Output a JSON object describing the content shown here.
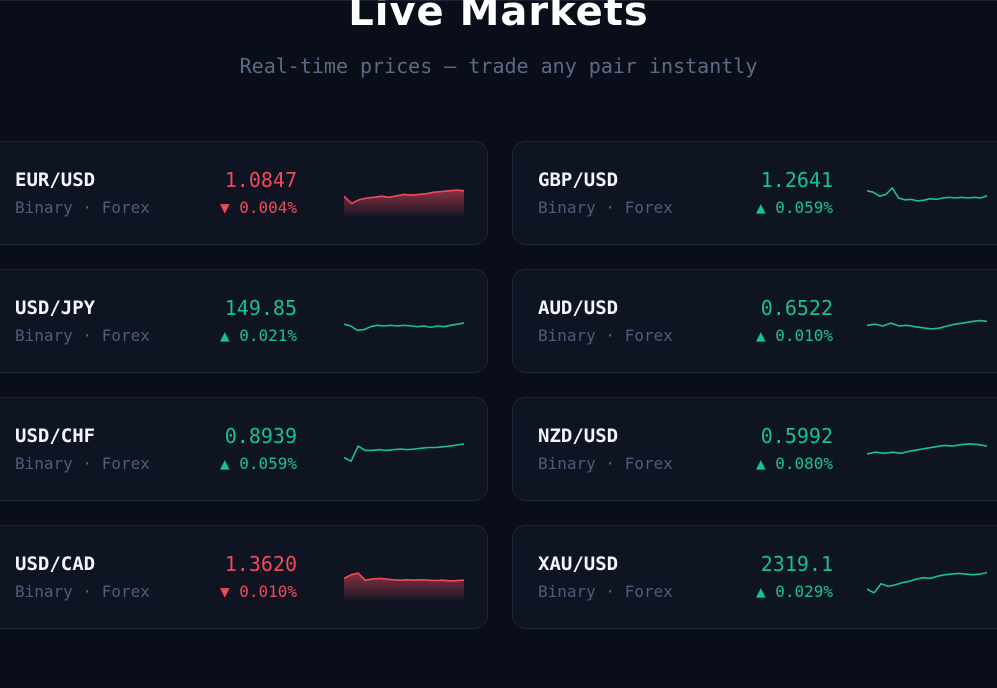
{
  "header": {
    "title": "Live Markets",
    "subtitle": "Real-time prices — trade any pair instantly"
  },
  "colors": {
    "up": "#19c28c",
    "down": "#f04a5a",
    "background": "#0a0e18",
    "card": "#0f1422"
  },
  "markets": [
    {
      "pair": "EUR/USD",
      "meta": "Binary · Forex",
      "price": "1.0847",
      "change": "▼ 0.004%",
      "direction": "down",
      "spark": [
        0.55,
        0.35,
        0.45,
        0.5,
        0.52,
        0.55,
        0.52,
        0.56,
        0.6,
        0.58,
        0.6,
        0.62,
        0.66,
        0.68,
        0.7,
        0.72,
        0.7
      ]
    },
    {
      "pair": "GBP/USD",
      "meta": "Binary · Forex",
      "price": "1.2641",
      "change": "▲ 0.059%",
      "direction": "up",
      "spark": [
        0.7,
        0.66,
        0.55,
        0.6,
        0.78,
        0.5,
        0.45,
        0.46,
        0.42,
        0.44,
        0.48,
        0.46,
        0.5,
        0.52,
        0.5,
        0.52,
        0.5,
        0.52,
        0.5,
        0.56
      ]
    },
    {
      "pair": "USD/JPY",
      "meta": "Binary · Forex",
      "price": "149.85",
      "change": "▲ 0.021%",
      "direction": "up",
      "spark": [
        0.55,
        0.5,
        0.38,
        0.4,
        0.48,
        0.52,
        0.5,
        0.52,
        0.5,
        0.52,
        0.5,
        0.48,
        0.5,
        0.46,
        0.5,
        0.48,
        0.52,
        0.55,
        0.58
      ]
    },
    {
      "pair": "AUD/USD",
      "meta": "Binary · Forex",
      "price": "0.6522",
      "change": "▲ 0.010%",
      "direction": "up",
      "spark": [
        0.52,
        0.55,
        0.5,
        0.58,
        0.5,
        0.52,
        0.48,
        0.45,
        0.42,
        0.44,
        0.5,
        0.55,
        0.58,
        0.62,
        0.65,
        0.63
      ]
    },
    {
      "pair": "USD/CHF",
      "meta": "Binary · Forex",
      "price": "0.8939",
      "change": "▲ 0.059%",
      "direction": "up",
      "spark": [
        0.4,
        0.3,
        0.72,
        0.6,
        0.6,
        0.62,
        0.6,
        0.62,
        0.64,
        0.62,
        0.64,
        0.66,
        0.68,
        0.68,
        0.7,
        0.72,
        0.75,
        0.78
      ]
    },
    {
      "pair": "NZD/USD",
      "meta": "Binary · Forex",
      "price": "0.5992",
      "change": "▲ 0.080%",
      "direction": "up",
      "spark": [
        0.5,
        0.55,
        0.52,
        0.55,
        0.52,
        0.58,
        0.62,
        0.66,
        0.7,
        0.74,
        0.72,
        0.76,
        0.78,
        0.76,
        0.72
      ]
    },
    {
      "pair": "USD/CAD",
      "meta": "Binary · Forex",
      "price": "1.3620",
      "change": "▼ 0.010%",
      "direction": "down",
      "spark": [
        0.6,
        0.7,
        0.75,
        0.55,
        0.58,
        0.6,
        0.58,
        0.56,
        0.55,
        0.56,
        0.55,
        0.56,
        0.55,
        0.54,
        0.55,
        0.53,
        0.54,
        0.55
      ]
    },
    {
      "pair": "XAU/USD",
      "meta": "Binary · Forex",
      "price": "2319.1",
      "change": "▲ 0.029%",
      "direction": "up",
      "spark": [
        0.3,
        0.2,
        0.45,
        0.38,
        0.42,
        0.48,
        0.52,
        0.58,
        0.62,
        0.6,
        0.66,
        0.7,
        0.72,
        0.74,
        0.72,
        0.7,
        0.72,
        0.76
      ]
    }
  ]
}
